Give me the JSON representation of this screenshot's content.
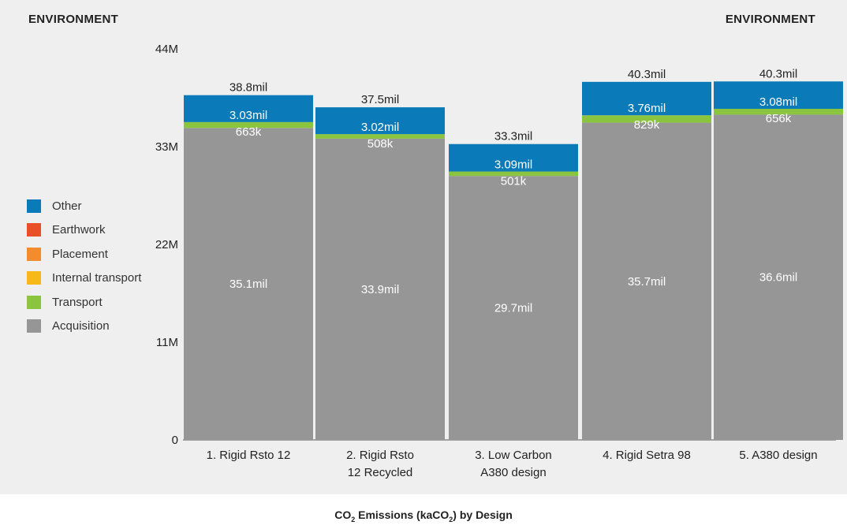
{
  "header": {
    "left_label": "ENVIRONMENT",
    "right_label": "ENVIRONMENT"
  },
  "footer": {
    "title_prefix": "CO",
    "title_sub1": "2",
    "title_mid": " Emissions (kaCO",
    "title_sub2": "2",
    "title_suffix": ") by Design"
  },
  "colors": {
    "Other": "#0a7ab8",
    "Earthwork": "#e9502a",
    "Placement": "#f28c2c",
    "Internal transport": "#f7b918",
    "Transport": "#8bc53f",
    "Acquisition": "#969696"
  },
  "chart_data": {
    "type": "bar",
    "stacked": true,
    "categories": [
      [
        "1. Rigid Rsto 12"
      ],
      [
        "2. Rigid Rsto",
        "12 Recycled"
      ],
      [
        "3. Low Carbon",
        "A380 design"
      ],
      [
        "4. Rigid Setra 98"
      ],
      [
        "5. A380 design"
      ]
    ],
    "y_ticks": [
      {
        "value": 0,
        "label": "0"
      },
      {
        "value": 11000000,
        "label": "11M"
      },
      {
        "value": 22000000,
        "label": "22M"
      },
      {
        "value": 33000000,
        "label": "33M"
      },
      {
        "value": 44000000,
        "label": "44M"
      }
    ],
    "ylim": [
      0,
      44000000
    ],
    "legend": [
      "Other",
      "Earthwork",
      "Placement",
      "Internal transport",
      "Transport",
      "Acquisition"
    ],
    "legend_position": "left",
    "series": [
      {
        "name": "Acquisition",
        "values": [
          35100000,
          33900000,
          29700000,
          35700000,
          36600000
        ],
        "labels": [
          "35.1mil",
          "33.9mil",
          "29.7mil",
          "35.7mil",
          "36.6mil"
        ]
      },
      {
        "name": "Transport",
        "values": [
          663000,
          508000,
          501000,
          829000,
          656000
        ],
        "labels": [
          "663k",
          "508k",
          "501k",
          "829k",
          "656k"
        ]
      },
      {
        "name": "Other",
        "values": [
          3030000,
          3020000,
          3090000,
          3760000,
          3080000
        ],
        "labels": [
          "3.03mil",
          "3.02mil",
          "3.09mil",
          "3.76mil",
          "3.08mil"
        ]
      }
    ],
    "totals": [
      38800000,
      37500000,
      33300000,
      40300000,
      40300000
    ],
    "total_labels": [
      "38.8mil",
      "37.5mil",
      "33.3mil",
      "40.3mil",
      "40.3mil"
    ]
  }
}
